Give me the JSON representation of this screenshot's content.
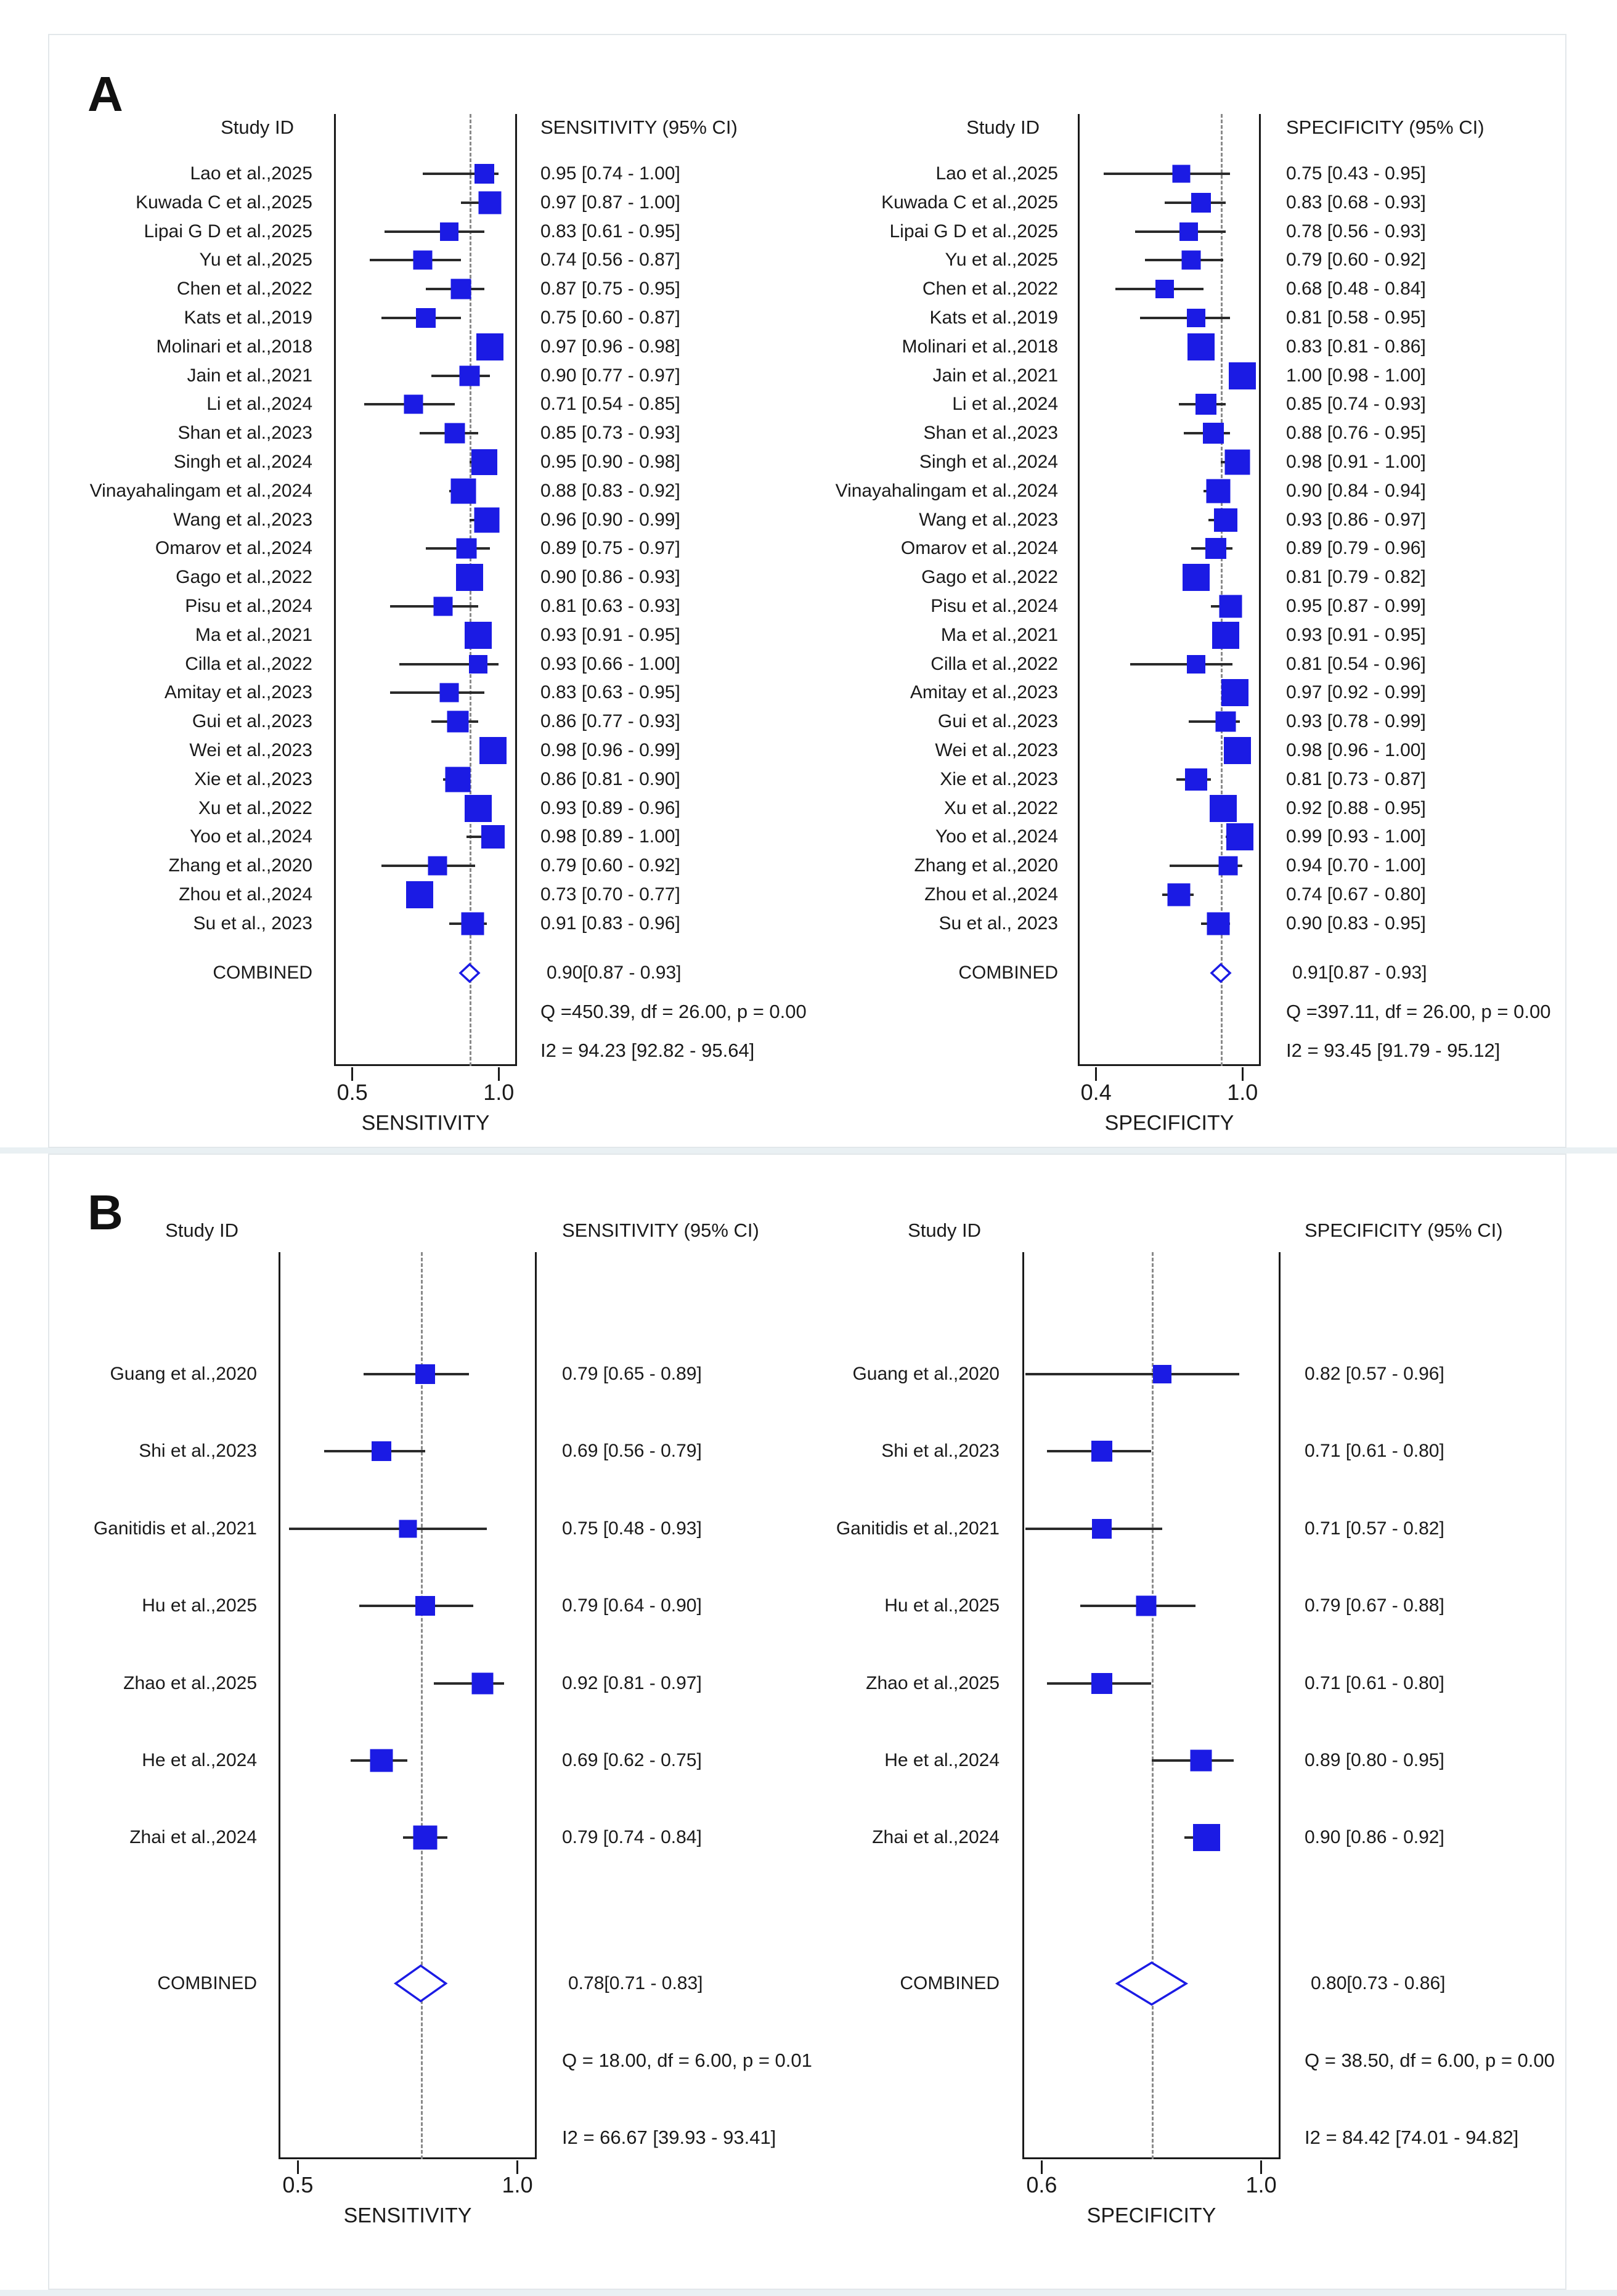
{
  "figure": {
    "panel_letters": [
      "A",
      "B"
    ]
  },
  "colors": {
    "marker_blue": "#1b1be4",
    "ci_line": "#2a2a2a",
    "dashed_ref": "#8a8a8a",
    "box_border": "#1a1a1a",
    "panel_border": "#e2e7ea",
    "separator_strip": "#e9f0f3",
    "text": "#1a1a1a",
    "background": "#ffffff"
  },
  "chart_data": [
    {
      "type": "scatter",
      "panel": "A",
      "measure": "sensitivity",
      "study_header": "Study ID",
      "value_header": "SENSITIVITY (95% CI)",
      "xlabel": "SENSITIVITY",
      "xlim": [
        0.5,
        1.0
      ],
      "tick_labels": [
        "0.5",
        "1.0"
      ],
      "dashed_line_at": 0.9,
      "rows": [
        {
          "study": "Lao et al.,2025",
          "est": 0.95,
          "lo": 0.74,
          "hi": 1.0,
          "text": "0.95 [0.74 - 1.00]"
        },
        {
          "study": "Kuwada C et al.,2025",
          "est": 0.97,
          "lo": 0.87,
          "hi": 1.0,
          "text": "0.97 [0.87 - 1.00]"
        },
        {
          "study": "Lipai G D et al.,2025",
          "est": 0.83,
          "lo": 0.61,
          "hi": 0.95,
          "text": "0.83 [0.61 - 0.95]"
        },
        {
          "study": "Yu et al.,2025",
          "est": 0.74,
          "lo": 0.56,
          "hi": 0.87,
          "text": "0.74 [0.56 - 0.87]"
        },
        {
          "study": "Chen et al.,2022",
          "est": 0.87,
          "lo": 0.75,
          "hi": 0.95,
          "text": "0.87 [0.75 - 0.95]"
        },
        {
          "study": "Kats et al.,2019",
          "est": 0.75,
          "lo": 0.6,
          "hi": 0.87,
          "text": "0.75 [0.60 - 0.87]"
        },
        {
          "study": "Molinari et al.,2018",
          "est": 0.97,
          "lo": 0.96,
          "hi": 0.98,
          "text": "0.97 [0.96 - 0.98]"
        },
        {
          "study": "Jain et al.,2021",
          "est": 0.9,
          "lo": 0.77,
          "hi": 0.97,
          "text": "0.90 [0.77 - 0.97]"
        },
        {
          "study": "Li et al.,2024",
          "est": 0.71,
          "lo": 0.54,
          "hi": 0.85,
          "text": "0.71 [0.54 - 0.85]"
        },
        {
          "study": "Shan et al.,2023",
          "est": 0.85,
          "lo": 0.73,
          "hi": 0.93,
          "text": "0.85 [0.73 - 0.93]"
        },
        {
          "study": "Singh et al.,2024",
          "est": 0.95,
          "lo": 0.9,
          "hi": 0.98,
          "text": "0.95 [0.90 - 0.98]"
        },
        {
          "study": "Vinayahalingam et al.,2024",
          "est": 0.88,
          "lo": 0.83,
          "hi": 0.92,
          "text": "0.88 [0.83 - 0.92]"
        },
        {
          "study": "Wang et al.,2023",
          "est": 0.96,
          "lo": 0.9,
          "hi": 0.99,
          "text": "0.96 [0.90 - 0.99]"
        },
        {
          "study": "Omarov et al.,2024",
          "est": 0.89,
          "lo": 0.75,
          "hi": 0.97,
          "text": "0.89 [0.75 - 0.97]"
        },
        {
          "study": "Gago et al.,2022",
          "est": 0.9,
          "lo": 0.86,
          "hi": 0.93,
          "text": "0.90 [0.86 - 0.93]"
        },
        {
          "study": "Pisu et al.,2024",
          "est": 0.81,
          "lo": 0.63,
          "hi": 0.93,
          "text": "0.81 [0.63 - 0.93]"
        },
        {
          "study": "Ma et al.,2021",
          "est": 0.93,
          "lo": 0.91,
          "hi": 0.95,
          "text": "0.93 [0.91 - 0.95]"
        },
        {
          "study": "Cilla et al.,2022",
          "est": 0.93,
          "lo": 0.66,
          "hi": 1.0,
          "text": "0.93 [0.66 - 1.00]"
        },
        {
          "study": "Amitay et al.,2023",
          "est": 0.83,
          "lo": 0.63,
          "hi": 0.95,
          "text": "0.83 [0.63 - 0.95]"
        },
        {
          "study": "Gui et al.,2023",
          "est": 0.86,
          "lo": 0.77,
          "hi": 0.93,
          "text": "0.86 [0.77 - 0.93]"
        },
        {
          "study": "Wei et al.,2023",
          "est": 0.98,
          "lo": 0.96,
          "hi": 0.99,
          "text": "0.98 [0.96 - 0.99]"
        },
        {
          "study": "Xie et al.,2023",
          "est": 0.86,
          "lo": 0.81,
          "hi": 0.9,
          "text": "0.86 [0.81 - 0.90]"
        },
        {
          "study": "Xu et al.,2022",
          "est": 0.93,
          "lo": 0.89,
          "hi": 0.96,
          "text": "0.93 [0.89 - 0.96]"
        },
        {
          "study": "Yoo et al.,2024",
          "est": 0.98,
          "lo": 0.89,
          "hi": 1.0,
          "text": "0.98 [0.89 - 1.00]"
        },
        {
          "study": "Zhang et al.,2020",
          "est": 0.79,
          "lo": 0.6,
          "hi": 0.92,
          "text": "0.79 [0.60 - 0.92]"
        },
        {
          "study": "Zhou et al.,2024",
          "est": 0.73,
          "lo": 0.7,
          "hi": 0.77,
          "text": "0.73 [0.70 - 0.77]"
        },
        {
          "study": "Su et al., 2023",
          "est": 0.91,
          "lo": 0.83,
          "hi": 0.96,
          "text": "0.91 [0.83 - 0.96]"
        }
      ],
      "combined": {
        "label": "COMBINED",
        "est": 0.9,
        "lo": 0.87,
        "hi": 0.93,
        "text": "0.90[0.87 - 0.93]"
      },
      "q_text": "Q =450.39, df = 26.00, p =  0.00",
      "i2_text": "I2 = 94.23 [92.82 - 95.64]"
    },
    {
      "type": "scatter",
      "panel": "A",
      "measure": "specificity",
      "study_header": "Study ID",
      "value_header": "SPECIFICITY (95% CI)",
      "xlabel": "SPECIFICITY",
      "xlim": [
        0.4,
        1.0
      ],
      "tick_labels": [
        "0.4",
        "1.0"
      ],
      "dashed_line_at": 0.91,
      "rows": [
        {
          "study": "Lao et al.,2025",
          "est": 0.75,
          "lo": 0.43,
          "hi": 0.95,
          "text": "0.75 [0.43 - 0.95]"
        },
        {
          "study": "Kuwada C et al.,2025",
          "est": 0.83,
          "lo": 0.68,
          "hi": 0.93,
          "text": "0.83 [0.68 - 0.93]"
        },
        {
          "study": "Lipai G D et al.,2025",
          "est": 0.78,
          "lo": 0.56,
          "hi": 0.93,
          "text": "0.78 [0.56 - 0.93]"
        },
        {
          "study": "Yu et al.,2025",
          "est": 0.79,
          "lo": 0.6,
          "hi": 0.92,
          "text": "0.79 [0.60 - 0.92]"
        },
        {
          "study": "Chen et al.,2022",
          "est": 0.68,
          "lo": 0.48,
          "hi": 0.84,
          "text": "0.68 [0.48 - 0.84]"
        },
        {
          "study": "Kats et al.,2019",
          "est": 0.81,
          "lo": 0.58,
          "hi": 0.95,
          "text": "0.81 [0.58 - 0.95]"
        },
        {
          "study": "Molinari et al.,2018",
          "est": 0.83,
          "lo": 0.81,
          "hi": 0.86,
          "text": "0.83 [0.81 - 0.86]"
        },
        {
          "study": "Jain et al.,2021",
          "est": 1.0,
          "lo": 0.98,
          "hi": 1.0,
          "text": "1.00 [0.98 - 1.00]"
        },
        {
          "study": "Li et al.,2024",
          "est": 0.85,
          "lo": 0.74,
          "hi": 0.93,
          "text": "0.85 [0.74 - 0.93]"
        },
        {
          "study": "Shan et al.,2023",
          "est": 0.88,
          "lo": 0.76,
          "hi": 0.95,
          "text": "0.88 [0.76 - 0.95]"
        },
        {
          "study": "Singh et al.,2024",
          "est": 0.98,
          "lo": 0.91,
          "hi": 1.0,
          "text": "0.98 [0.91 - 1.00]"
        },
        {
          "study": "Vinayahalingam et al.,2024",
          "est": 0.9,
          "lo": 0.84,
          "hi": 0.94,
          "text": "0.90 [0.84 - 0.94]"
        },
        {
          "study": "Wang et al.,2023",
          "est": 0.93,
          "lo": 0.86,
          "hi": 0.97,
          "text": "0.93 [0.86 - 0.97]"
        },
        {
          "study": "Omarov et al.,2024",
          "est": 0.89,
          "lo": 0.79,
          "hi": 0.96,
          "text": "0.89 [0.79 - 0.96]"
        },
        {
          "study": "Gago et al.,2022",
          "est": 0.81,
          "lo": 0.79,
          "hi": 0.82,
          "text": "0.81 [0.79 - 0.82]"
        },
        {
          "study": "Pisu et al.,2024",
          "est": 0.95,
          "lo": 0.87,
          "hi": 0.99,
          "text": "0.95 [0.87 - 0.99]"
        },
        {
          "study": "Ma et al.,2021",
          "est": 0.93,
          "lo": 0.91,
          "hi": 0.95,
          "text": "0.93 [0.91 - 0.95]"
        },
        {
          "study": "Cilla et al.,2022",
          "est": 0.81,
          "lo": 0.54,
          "hi": 0.96,
          "text": "0.81 [0.54 - 0.96]"
        },
        {
          "study": "Amitay et al.,2023",
          "est": 0.97,
          "lo": 0.92,
          "hi": 0.99,
          "text": "0.97 [0.92 - 0.99]"
        },
        {
          "study": "Gui et al.,2023",
          "est": 0.93,
          "lo": 0.78,
          "hi": 0.99,
          "text": "0.93 [0.78 - 0.99]"
        },
        {
          "study": "Wei et al.,2023",
          "est": 0.98,
          "lo": 0.96,
          "hi": 1.0,
          "text": "0.98 [0.96 - 1.00]"
        },
        {
          "study": "Xie et al.,2023",
          "est": 0.81,
          "lo": 0.73,
          "hi": 0.87,
          "text": "0.81 [0.73 - 0.87]"
        },
        {
          "study": "Xu et al.,2022",
          "est": 0.92,
          "lo": 0.88,
          "hi": 0.95,
          "text": "0.92 [0.88 - 0.95]"
        },
        {
          "study": "Yoo et al.,2024",
          "est": 0.99,
          "lo": 0.93,
          "hi": 1.0,
          "text": "0.99 [0.93 - 1.00]"
        },
        {
          "study": "Zhang et al.,2020",
          "est": 0.94,
          "lo": 0.7,
          "hi": 1.0,
          "text": "0.94 [0.70 - 1.00]"
        },
        {
          "study": "Zhou et al.,2024",
          "est": 0.74,
          "lo": 0.67,
          "hi": 0.8,
          "text": "0.74 [0.67 - 0.80]"
        },
        {
          "study": "Su et al., 2023",
          "est": 0.9,
          "lo": 0.83,
          "hi": 0.95,
          "text": "0.90 [0.83 - 0.95]"
        }
      ],
      "combined": {
        "label": "COMBINED",
        "est": 0.91,
        "lo": 0.87,
        "hi": 0.93,
        "text": "0.91[0.87 - 0.93]"
      },
      "q_text": "Q =397.11, df = 26.00, p =  0.00",
      "i2_text": "I2 = 93.45 [91.79 - 95.12]"
    },
    {
      "type": "scatter",
      "panel": "B",
      "measure": "sensitivity",
      "study_header": "Study ID",
      "value_header": "SENSITIVITY (95% CI)",
      "xlabel": "SENSITIVITY",
      "xlim": [
        0.5,
        1.0
      ],
      "tick_labels": [
        "0.5",
        "1.0"
      ],
      "dashed_line_at": 0.78,
      "rows": [
        {
          "study": "Guang et al.,2020",
          "est": 0.79,
          "lo": 0.65,
          "hi": 0.89,
          "text": "0.79 [0.65 - 0.89]"
        },
        {
          "study": "Shi et al.,2023",
          "est": 0.69,
          "lo": 0.56,
          "hi": 0.79,
          "text": "0.69 [0.56 - 0.79]"
        },
        {
          "study": "Ganitidis et al.,2021",
          "est": 0.75,
          "lo": 0.48,
          "hi": 0.93,
          "text": "0.75 [0.48 - 0.93]"
        },
        {
          "study": "Hu et al.,2025",
          "est": 0.79,
          "lo": 0.64,
          "hi": 0.9,
          "text": "0.79 [0.64 - 0.90]"
        },
        {
          "study": "Zhao et al.,2025",
          "est": 0.92,
          "lo": 0.81,
          "hi": 0.97,
          "text": "0.92 [0.81 - 0.97]"
        },
        {
          "study": "He et al.,2024",
          "est": 0.69,
          "lo": 0.62,
          "hi": 0.75,
          "text": "0.69 [0.62 - 0.75]"
        },
        {
          "study": "Zhai et al.,2024",
          "est": 0.79,
          "lo": 0.74,
          "hi": 0.84,
          "text": "0.79 [0.74 - 0.84]"
        }
      ],
      "combined": {
        "label": "COMBINED",
        "est": 0.78,
        "lo": 0.71,
        "hi": 0.83,
        "text": "0.78[0.71 - 0.83]"
      },
      "q_text": "Q = 18.00, df = 6.00, p =  0.01",
      "i2_text": "I2 = 66.67 [39.93 - 93.41]"
    },
    {
      "type": "scatter",
      "panel": "B",
      "measure": "specificity",
      "study_header": "Study ID",
      "value_header": "SPECIFICITY (95% CI)",
      "xlabel": "SPECIFICITY",
      "xlim": [
        0.6,
        1.0
      ],
      "tick_labels": [
        "0.6",
        "1.0"
      ],
      "dashed_line_at": 0.8,
      "rows": [
        {
          "study": "Guang et al.,2020",
          "est": 0.82,
          "lo": 0.57,
          "hi": 0.96,
          "text": "0.82 [0.57 - 0.96]"
        },
        {
          "study": "Shi et al.,2023",
          "est": 0.71,
          "lo": 0.61,
          "hi": 0.8,
          "text": "0.71 [0.61 - 0.80]"
        },
        {
          "study": "Ganitidis et al.,2021",
          "est": 0.71,
          "lo": 0.57,
          "hi": 0.82,
          "text": "0.71 [0.57 - 0.82]"
        },
        {
          "study": "Hu et al.,2025",
          "est": 0.79,
          "lo": 0.67,
          "hi": 0.88,
          "text": "0.79 [0.67 - 0.88]"
        },
        {
          "study": "Zhao et al.,2025",
          "est": 0.71,
          "lo": 0.61,
          "hi": 0.8,
          "text": "0.71 [0.61 - 0.80]"
        },
        {
          "study": "He et al.,2024",
          "est": 0.89,
          "lo": 0.8,
          "hi": 0.95,
          "text": "0.89 [0.80 - 0.95]"
        },
        {
          "study": "Zhai et al.,2024",
          "est": 0.9,
          "lo": 0.86,
          "hi": 0.92,
          "text": "0.90 [0.86 - 0.92]"
        }
      ],
      "combined": {
        "label": "COMBINED",
        "est": 0.8,
        "lo": 0.73,
        "hi": 0.86,
        "text": "0.80[0.73 - 0.86]"
      },
      "q_text": "Q = 38.50, df = 6.00, p =  0.00",
      "i2_text": "I2 = 84.42 [74.01 - 94.82]"
    }
  ]
}
